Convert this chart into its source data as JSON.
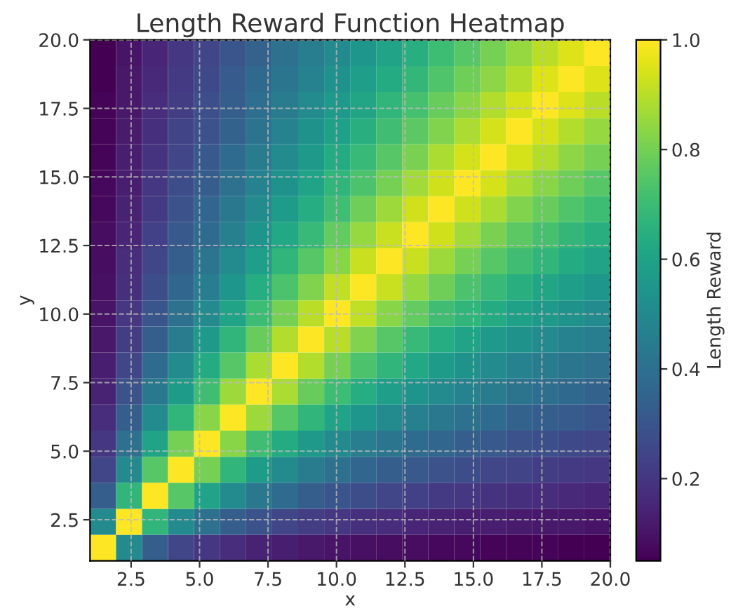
{
  "chart_data": {
    "type": "heatmap",
    "title": "Length Reward Function Heatmap",
    "xlabel": "x",
    "ylabel": "y",
    "clabel": "Length Reward",
    "x": [
      1.475,
      2.425,
      3.375,
      4.325,
      5.275,
      6.225,
      7.175,
      8.125,
      9.075,
      10.025,
      10.975,
      11.925,
      12.875,
      13.825,
      14.775,
      15.725,
      16.675,
      17.625,
      18.575,
      19.525
    ],
    "y": [
      19.525,
      18.575,
      17.625,
      16.675,
      15.725,
      14.775,
      13.825,
      12.875,
      11.925,
      10.975,
      10.025,
      9.075,
      8.125,
      7.175,
      6.225,
      5.275,
      4.325,
      3.375,
      2.425,
      1.475
    ],
    "cells": [
      [
        0.05,
        0.1,
        0.15,
        0.2,
        0.25,
        0.3,
        0.35,
        0.4,
        0.45,
        0.5,
        0.55,
        0.6,
        0.65,
        0.7,
        0.75,
        0.8,
        0.85,
        0.9,
        0.95,
        1
      ],
      [
        0.05,
        0.11,
        0.16,
        0.21,
        0.26,
        0.32,
        0.37,
        0.42,
        0.47,
        0.53,
        0.58,
        0.63,
        0.68,
        0.74,
        0.79,
        0.84,
        0.89,
        0.95,
        1,
        0.95
      ],
      [
        0.06,
        0.11,
        0.17,
        0.22,
        0.28,
        0.33,
        0.39,
        0.44,
        0.5,
        0.56,
        0.61,
        0.67,
        0.72,
        0.78,
        0.83,
        0.89,
        0.94,
        1,
        0.95,
        0.9
      ],
      [
        0.06,
        0.12,
        0.18,
        0.24,
        0.29,
        0.35,
        0.41,
        0.47,
        0.53,
        0.59,
        0.65,
        0.71,
        0.76,
        0.82,
        0.88,
        0.94,
        1,
        0.94,
        0.89,
        0.85
      ],
      [
        0.06,
        0.13,
        0.19,
        0.25,
        0.31,
        0.38,
        0.44,
        0.5,
        0.56,
        0.63,
        0.69,
        0.75,
        0.81,
        0.88,
        0.94,
        1,
        0.94,
        0.89,
        0.84,
        0.8
      ],
      [
        0.07,
        0.13,
        0.2,
        0.27,
        0.33,
        0.4,
        0.47,
        0.53,
        0.6,
        0.67,
        0.73,
        0.8,
        0.87,
        0.93,
        1,
        0.94,
        0.88,
        0.83,
        0.79,
        0.75
      ],
      [
        0.07,
        0.14,
        0.21,
        0.29,
        0.36,
        0.43,
        0.5,
        0.57,
        0.64,
        0.71,
        0.79,
        0.86,
        0.93,
        1,
        0.93,
        0.88,
        0.82,
        0.78,
        0.74,
        0.7
      ],
      [
        0.08,
        0.15,
        0.23,
        0.31,
        0.38,
        0.46,
        0.54,
        0.62,
        0.69,
        0.77,
        0.85,
        0.92,
        1,
        0.93,
        0.87,
        0.81,
        0.76,
        0.72,
        0.68,
        0.65
      ],
      [
        0.08,
        0.17,
        0.25,
        0.33,
        0.42,
        0.5,
        0.58,
        0.67,
        0.75,
        0.83,
        0.92,
        1,
        0.92,
        0.86,
        0.8,
        0.75,
        0.71,
        0.67,
        0.63,
        0.6
      ],
      [
        0.09,
        0.18,
        0.27,
        0.36,
        0.45,
        0.55,
        0.64,
        0.73,
        0.82,
        0.91,
        1,
        0.92,
        0.85,
        0.79,
        0.73,
        0.69,
        0.65,
        0.61,
        0.58,
        0.55
      ],
      [
        0.1,
        0.2,
        0.3,
        0.4,
        0.5,
        0.6,
        0.7,
        0.8,
        0.9,
        1,
        0.91,
        0.83,
        0.77,
        0.71,
        0.67,
        0.63,
        0.59,
        0.56,
        0.53,
        0.5
      ],
      [
        0.11,
        0.22,
        0.33,
        0.44,
        0.56,
        0.67,
        0.78,
        0.89,
        1,
        0.9,
        0.82,
        0.75,
        0.69,
        0.64,
        0.6,
        0.56,
        0.53,
        0.5,
        0.47,
        0.45
      ],
      [
        0.13,
        0.25,
        0.38,
        0.5,
        0.63,
        0.75,
        0.88,
        1,
        0.89,
        0.8,
        0.73,
        0.67,
        0.62,
        0.57,
        0.53,
        0.5,
        0.47,
        0.44,
        0.42,
        0.4
      ],
      [
        0.14,
        0.29,
        0.43,
        0.57,
        0.71,
        0.86,
        1,
        0.88,
        0.78,
        0.7,
        0.64,
        0.58,
        0.54,
        0.5,
        0.47,
        0.44,
        0.41,
        0.39,
        0.37,
        0.35
      ],
      [
        0.17,
        0.33,
        0.5,
        0.67,
        0.83,
        1,
        0.86,
        0.75,
        0.67,
        0.6,
        0.55,
        0.5,
        0.46,
        0.43,
        0.4,
        0.38,
        0.35,
        0.33,
        0.32,
        0.3
      ],
      [
        0.2,
        0.4,
        0.6,
        0.8,
        1,
        0.83,
        0.71,
        0.63,
        0.56,
        0.5,
        0.45,
        0.42,
        0.38,
        0.36,
        0.33,
        0.31,
        0.29,
        0.28,
        0.26,
        0.25
      ],
      [
        0.25,
        0.5,
        0.75,
        1,
        0.8,
        0.67,
        0.57,
        0.5,
        0.44,
        0.4,
        0.36,
        0.33,
        0.31,
        0.29,
        0.27,
        0.25,
        0.24,
        0.22,
        0.21,
        0.2
      ],
      [
        0.33,
        0.67,
        1,
        0.75,
        0.6,
        0.5,
        0.43,
        0.38,
        0.33,
        0.3,
        0.27,
        0.25,
        0.23,
        0.21,
        0.2,
        0.19,
        0.18,
        0.17,
        0.16,
        0.15
      ],
      [
        0.5,
        1,
        0.67,
        0.5,
        0.4,
        0.33,
        0.29,
        0.25,
        0.22,
        0.2,
        0.18,
        0.17,
        0.15,
        0.14,
        0.13,
        0.13,
        0.12,
        0.11,
        0.11,
        0.1
      ],
      [
        1,
        0.5,
        0.33,
        0.25,
        0.2,
        0.17,
        0.14,
        0.13,
        0.11,
        0.1,
        0.09,
        0.08,
        0.08,
        0.07,
        0.07,
        0.06,
        0.06,
        0.06,
        0.05,
        0.05
      ]
    ],
    "xlim": [
      1,
      20
    ],
    "ylim": [
      1,
      20
    ],
    "xticks": [
      2.5,
      {
        "value": 5,
        "label": "5.0"
      },
      7.5,
      {
        "value": 10,
        "label": "10.0"
      },
      12.5,
      {
        "value": 15,
        "label": "15.0"
      },
      17.5,
      {
        "value": 20,
        "label": "20.0"
      }
    ],
    "yticks": [
      2.5,
      {
        "value": 5,
        "label": "5.0"
      },
      7.5,
      {
        "value": 10,
        "label": "10.0"
      },
      12.5,
      {
        "value": 15,
        "label": "15.0"
      },
      17.5,
      {
        "value": 20,
        "label": "20.0"
      }
    ],
    "clim": [
      0.05,
      1
    ],
    "cticks": [
      0.2,
      0.4,
      0.6,
      0.8,
      {
        "value": 1,
        "label": "1.0"
      }
    ],
    "grid": true
  }
}
